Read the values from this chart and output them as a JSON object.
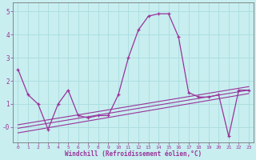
{
  "x": [
    0,
    1,
    2,
    3,
    4,
    5,
    6,
    7,
    8,
    9,
    10,
    11,
    12,
    13,
    14,
    15,
    16,
    17,
    18,
    19,
    20,
    21,
    22,
    23
  ],
  "y_main": [
    2.5,
    1.4,
    1.0,
    -0.1,
    1.0,
    1.6,
    0.5,
    0.4,
    0.5,
    0.5,
    1.4,
    3.0,
    4.2,
    4.8,
    4.9,
    4.9,
    3.9,
    1.5,
    1.3,
    1.3,
    1.4,
    -0.4,
    1.6,
    1.6
  ],
  "trend1_x": [
    0,
    23
  ],
  "trend1_y": [
    -0.25,
    1.45
  ],
  "trend2_x": [
    0,
    23
  ],
  "trend2_y": [
    -0.05,
    1.6
  ],
  "trend3_x": [
    0,
    23
  ],
  "trend3_y": [
    0.1,
    1.75
  ],
  "line_color": "#993399",
  "bg_color": "#c8eef0",
  "grid_color": "#aadddd",
  "xlabel": "Windchill (Refroidissement éolien,°C)",
  "xlim": [
    -0.5,
    23.5
  ],
  "ylim": [
    -0.65,
    5.4
  ],
  "ytick_vals": [
    0,
    1,
    2,
    3,
    4,
    5
  ],
  "ytick_labels": [
    "-0",
    "1",
    "2",
    "3",
    "4",
    "5"
  ],
  "xtick_labels": [
    "0",
    "1",
    "2",
    "3",
    "4",
    "5",
    "6",
    "7",
    "8",
    "9",
    "10",
    "11",
    "12",
    "13",
    "14",
    "15",
    "16",
    "17",
    "18",
    "19",
    "20",
    "21",
    "22",
    "23"
  ]
}
